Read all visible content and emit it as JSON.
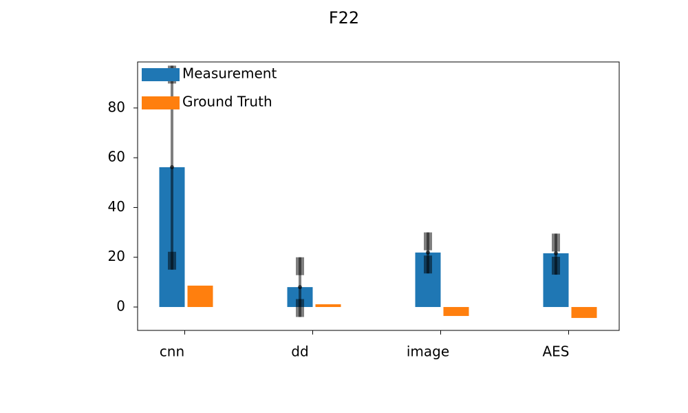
{
  "chart_data": {
    "type": "bar",
    "title": "F22",
    "categories": [
      "cnn",
      "dd",
      "image",
      "AES"
    ],
    "series": [
      {
        "name": "Measurement",
        "color": "#1f77b4",
        "values": [
          56.2,
          8.0,
          21.9,
          21.6
        ],
        "error_low": [
          15,
          -4,
          13.5,
          13
        ],
        "error_high": [
          97,
          20,
          30,
          29.5
        ]
      },
      {
        "name": "Ground Truth",
        "color": "#ff7f0e",
        "values": [
          8.6,
          1.1,
          -3.6,
          -4.4
        ]
      }
    ],
    "ylim": [
      -9.4,
      98.5
    ],
    "yticks": [
      0,
      20,
      40,
      60,
      80
    ],
    "legend": "upper left",
    "grid": false
  }
}
